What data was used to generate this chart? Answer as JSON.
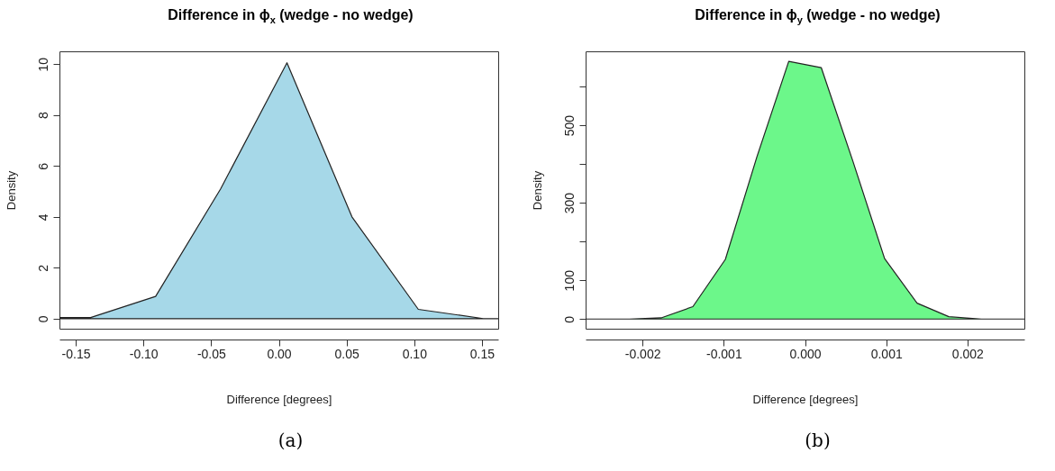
{
  "chart_data": [
    {
      "type": "area",
      "title": "Difference in ϕ$_{x}$   (wedge - no wedge)",
      "xlabel": "Difference [degrees]",
      "ylabel": "Density",
      "color": "#a6d8e8",
      "x": [
        -0.162,
        -0.139,
        -0.091,
        -0.043,
        0.006,
        0.054,
        0.103,
        0.152,
        0.162
      ],
      "values": [
        0.05,
        0.05,
        0.88,
        5.1,
        10.05,
        4.0,
        0.37,
        0,
        0
      ],
      "xlim": [
        -0.162,
        0.162
      ],
      "xticks": [
        {
          "value": -0.15,
          "label": "-0.15"
        },
        {
          "value": -0.1,
          "label": "-0.10"
        },
        {
          "value": -0.05,
          "label": "-0.05"
        },
        {
          "value": 0,
          "label": "0.00"
        },
        {
          "value": 0.05,
          "label": "0.05"
        },
        {
          "value": 0.1,
          "label": "0.10"
        },
        {
          "value": 0.15,
          "label": "0.15"
        }
      ],
      "ylim": [
        -0.39,
        10.5
      ],
      "yticks": [
        0,
        2,
        4,
        6,
        8,
        10
      ],
      "annotations": [
        "(a)"
      ]
    },
    {
      "type": "area",
      "title": "Difference in ϕ$_{y}$   (wedge - no wedge)",
      "xlabel": "Difference [degrees]",
      "ylabel": "Density",
      "color": "#6cf78a",
      "x": [
        -0.0027,
        -0.00216,
        -0.00177,
        -0.00138,
        -0.00098,
        -0.00059,
        -0.0002,
        0.0002,
        0.00059,
        0.00098,
        0.00138,
        0.00177,
        0.00217,
        0.0027
      ],
      "values": [
        0,
        0,
        3,
        32,
        154,
        420,
        665,
        649,
        407,
        156,
        41,
        6,
        0,
        0
      ],
      "xlim": [
        -0.0027,
        0.0027
      ],
      "xticks": [
        {
          "value": -0.002,
          "label": "-0.002"
        },
        {
          "value": -0.001,
          "label": "-0.001"
        },
        {
          "value": 0,
          "label": "0.000"
        },
        {
          "value": 0.001,
          "label": "0.001"
        },
        {
          "value": 0.002,
          "label": "0.002"
        }
      ],
      "ylim": [
        -25,
        691
      ],
      "yticks": [
        0,
        100,
        {
          "value": 200,
          "label": null
        },
        300,
        {
          "value": 400,
          "label": null
        },
        500,
        {
          "value": 600,
          "label": null
        }
      ],
      "annotations": [
        "(b)"
      ]
    }
  ]
}
